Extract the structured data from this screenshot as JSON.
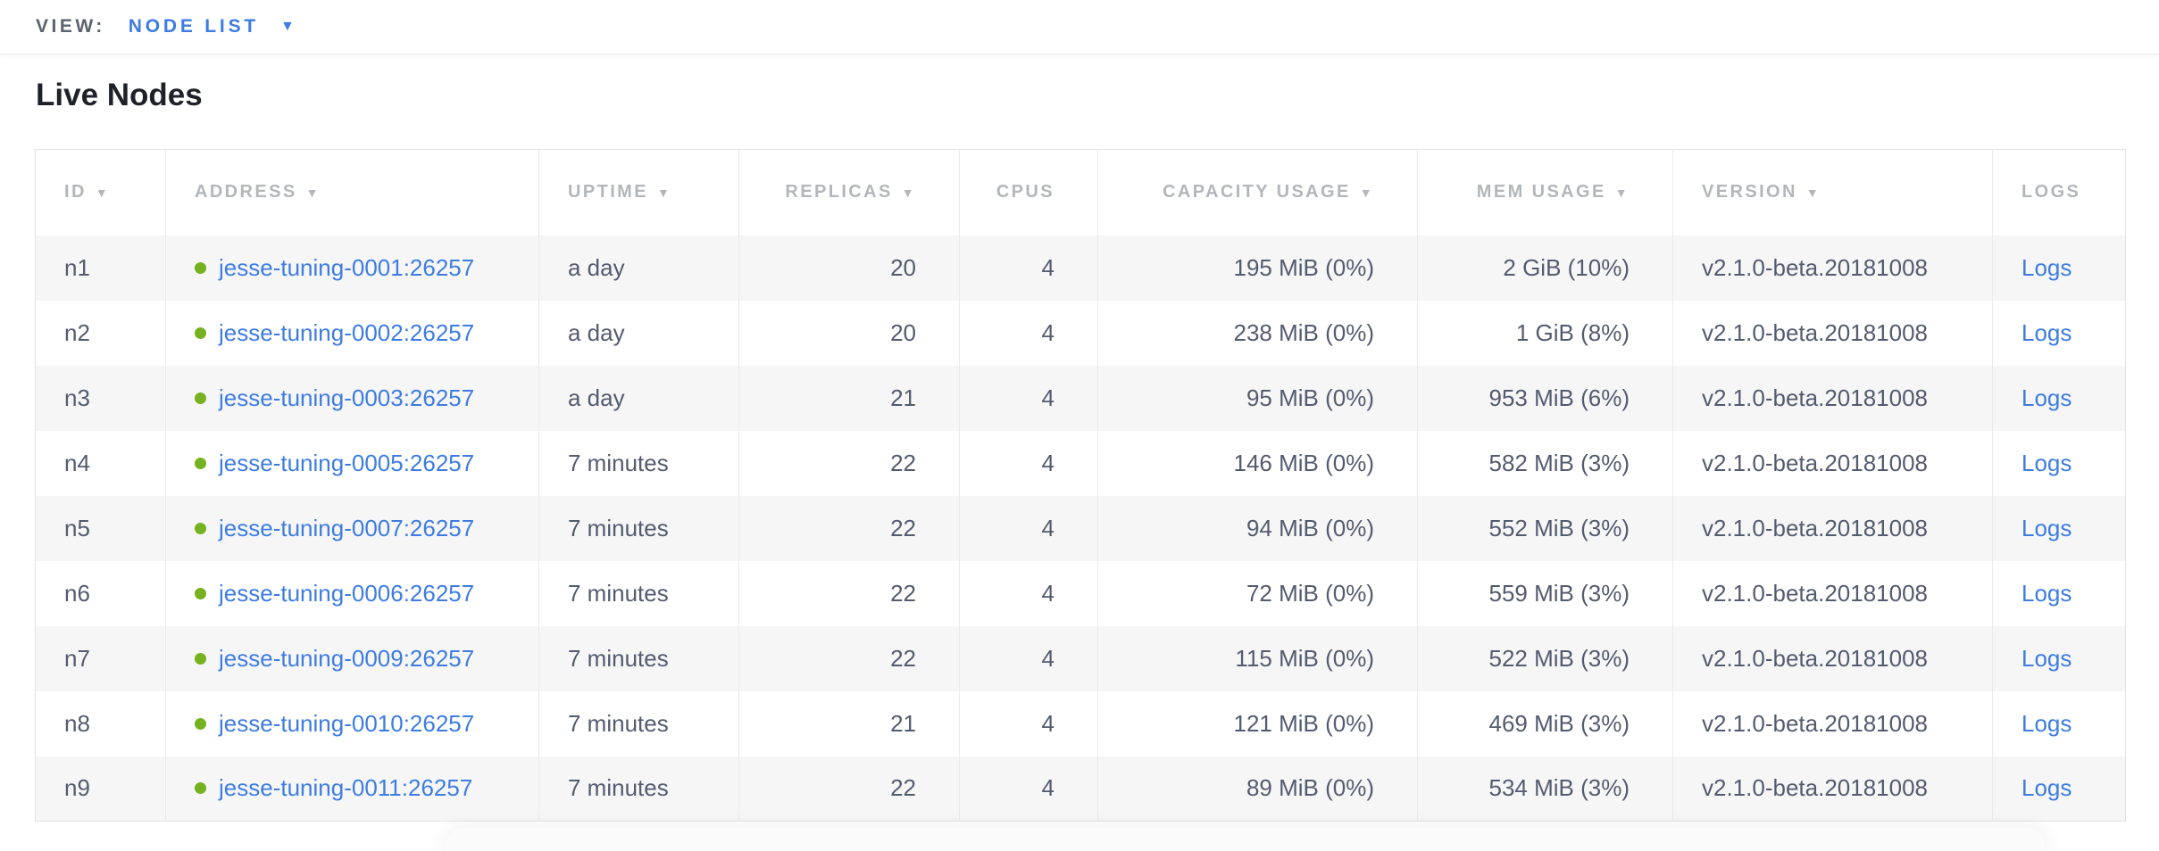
{
  "view_bar": {
    "label": "VIEW:",
    "selected_view": "NODE LIST",
    "caret_icon": "▼"
  },
  "page_title": "Live Nodes",
  "table": {
    "sort_arrow": "▼",
    "columns": [
      {
        "field": "id",
        "label": "ID",
        "sortable": true,
        "align": "left"
      },
      {
        "field": "address",
        "label": "ADDRESS",
        "sortable": true,
        "align": "left"
      },
      {
        "field": "uptime",
        "label": "UPTIME",
        "sortable": true,
        "align": "left"
      },
      {
        "field": "replicas",
        "label": "REPLICAS",
        "sortable": true,
        "align": "right"
      },
      {
        "field": "cpus",
        "label": "CPUS",
        "sortable": false,
        "align": "right"
      },
      {
        "field": "capacity_usage",
        "label": "CAPACITY USAGE",
        "sortable": true,
        "align": "right"
      },
      {
        "field": "mem_usage",
        "label": "MEM USAGE",
        "sortable": true,
        "align": "right"
      },
      {
        "field": "version",
        "label": "VERSION",
        "sortable": true,
        "align": "left"
      },
      {
        "field": "logs",
        "label": "LOGS",
        "sortable": false,
        "align": "left"
      }
    ],
    "rows": [
      {
        "id": "n1",
        "status": "healthy",
        "address": "jesse-tuning-0001:26257",
        "uptime": "a day",
        "replicas": "20",
        "cpus": "4",
        "capacity_usage": "195 MiB (0%)",
        "mem_usage": "2 GiB (10%)",
        "version": "v2.1.0-beta.20181008",
        "logs": "Logs"
      },
      {
        "id": "n2",
        "status": "healthy",
        "address": "jesse-tuning-0002:26257",
        "uptime": "a day",
        "replicas": "20",
        "cpus": "4",
        "capacity_usage": "238 MiB (0%)",
        "mem_usage": "1 GiB (8%)",
        "version": "v2.1.0-beta.20181008",
        "logs": "Logs"
      },
      {
        "id": "n3",
        "status": "healthy",
        "address": "jesse-tuning-0003:26257",
        "uptime": "a day",
        "replicas": "21",
        "cpus": "4",
        "capacity_usage": "95 MiB (0%)",
        "mem_usage": "953 MiB (6%)",
        "version": "v2.1.0-beta.20181008",
        "logs": "Logs"
      },
      {
        "id": "n4",
        "status": "healthy",
        "address": "jesse-tuning-0005:26257",
        "uptime": "7 minutes",
        "replicas": "22",
        "cpus": "4",
        "capacity_usage": "146 MiB (0%)",
        "mem_usage": "582 MiB (3%)",
        "version": "v2.1.0-beta.20181008",
        "logs": "Logs"
      },
      {
        "id": "n5",
        "status": "healthy",
        "address": "jesse-tuning-0007:26257",
        "uptime": "7 minutes",
        "replicas": "22",
        "cpus": "4",
        "capacity_usage": "94 MiB (0%)",
        "mem_usage": "552 MiB (3%)",
        "version": "v2.1.0-beta.20181008",
        "logs": "Logs"
      },
      {
        "id": "n6",
        "status": "healthy",
        "address": "jesse-tuning-0006:26257",
        "uptime": "7 minutes",
        "replicas": "22",
        "cpus": "4",
        "capacity_usage": "72 MiB (0%)",
        "mem_usage": "559 MiB (3%)",
        "version": "v2.1.0-beta.20181008",
        "logs": "Logs"
      },
      {
        "id": "n7",
        "status": "healthy",
        "address": "jesse-tuning-0009:26257",
        "uptime": "7 minutes",
        "replicas": "22",
        "cpus": "4",
        "capacity_usage": "115 MiB (0%)",
        "mem_usage": "522 MiB (3%)",
        "version": "v2.1.0-beta.20181008",
        "logs": "Logs"
      },
      {
        "id": "n8",
        "status": "healthy",
        "address": "jesse-tuning-0010:26257",
        "uptime": "7 minutes",
        "replicas": "21",
        "cpus": "4",
        "capacity_usage": "121 MiB (0%)",
        "mem_usage": "469 MiB (3%)",
        "version": "v2.1.0-beta.20181008",
        "logs": "Logs"
      },
      {
        "id": "n9",
        "status": "healthy",
        "address": "jesse-tuning-0011:26257",
        "uptime": "7 minutes",
        "replicas": "22",
        "cpus": "4",
        "capacity_usage": "89 MiB (0%)",
        "mem_usage": "534 MiB (3%)",
        "version": "v2.1.0-beta.20181008",
        "logs": "Logs"
      }
    ]
  },
  "colors": {
    "link_blue": "#3e7ce2",
    "status_dot_green": "#76b11f",
    "header_text": "#b3b6ba",
    "cell_text": "#535b6e",
    "row_alt_bg": "#f6f6f7"
  }
}
